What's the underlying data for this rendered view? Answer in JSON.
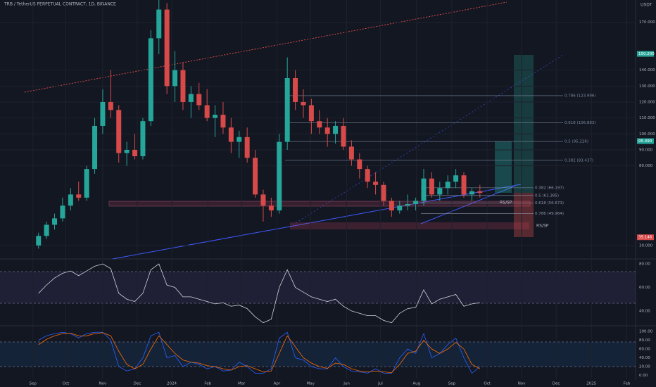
{
  "chart_data": [
    {
      "type": "candlestick",
      "title": "TRB / TetherUS PERPETUAL CONTRACT, 1D, BINANCE",
      "currency": "USDT",
      "x": [
        0,
        1,
        2,
        3,
        4,
        5,
        6,
        7,
        8,
        9,
        10,
        11,
        12,
        13,
        14,
        15,
        16,
        17,
        18,
        19,
        20,
        21,
        22,
        23,
        24,
        25,
        26,
        27,
        28,
        29,
        30,
        31,
        32,
        33,
        34,
        35,
        36,
        37,
        38,
        39,
        40,
        41,
        42,
        43,
        44,
        45,
        46,
        47,
        48,
        49,
        50,
        51,
        52,
        53,
        54,
        55
      ],
      "open": [
        30,
        36,
        43,
        47,
        55,
        62,
        60,
        78,
        105,
        120,
        115,
        88,
        90,
        86,
        108,
        160,
        178,
        130,
        140,
        120,
        125,
        118,
        110,
        112,
        104,
        95,
        98,
        85,
        62,
        55,
        52,
        95,
        135,
        120,
        118,
        108,
        104,
        100,
        105,
        92,
        84,
        78,
        70,
        68,
        58,
        52,
        55,
        56,
        58,
        72,
        62,
        66,
        70,
        74,
        62,
        64
      ],
      "high": [
        38,
        45,
        50,
        60,
        66,
        70,
        80,
        110,
        128,
        140,
        118,
        95,
        100,
        110,
        165,
        184,
        182,
        152,
        145,
        130,
        132,
        128,
        118,
        120,
        110,
        102,
        104,
        90,
        65,
        60,
        100,
        148,
        140,
        128,
        122,
        115,
        110,
        108,
        110,
        96,
        88,
        80,
        76,
        70,
        60,
        58,
        62,
        60,
        78,
        76,
        70,
        74,
        78,
        76,
        66,
        68
      ],
      "low": [
        28,
        34,
        40,
        45,
        52,
        58,
        58,
        75,
        100,
        110,
        82,
        80,
        84,
        84,
        105,
        150,
        125,
        120,
        115,
        110,
        115,
        108,
        98,
        100,
        88,
        85,
        82,
        60,
        45,
        48,
        50,
        90,
        115,
        110,
        100,
        100,
        92,
        94,
        90,
        80,
        72,
        66,
        62,
        55,
        48,
        50,
        52,
        52,
        55,
        60,
        58,
        62,
        66,
        60,
        58,
        60
      ],
      "close": [
        36,
        43,
        47,
        55,
        62,
        60,
        78,
        105,
        120,
        115,
        88,
        90,
        86,
        108,
        160,
        178,
        130,
        140,
        120,
        125,
        118,
        110,
        112,
        104,
        95,
        98,
        85,
        62,
        55,
        52,
        95,
        135,
        120,
        118,
        108,
        104,
        100,
        105,
        92,
        84,
        78,
        70,
        68,
        58,
        52,
        55,
        56,
        58,
        72,
        62,
        66,
        70,
        74,
        62,
        64,
        63
      ],
      "colors": {
        "up": "#26a69a",
        "down": "#d84a4a"
      },
      "xlim": [
        -4.8,
        74.4
      ],
      "xticks": [
        {
          "value": -0.7,
          "label": "Sep"
        },
        {
          "value": 3.4,
          "label": "Oct"
        },
        {
          "value": 8.0,
          "label": "Nov"
        },
        {
          "value": 12.3,
          "label": "Dec"
        },
        {
          "value": 16.6,
          "label": "2024"
        },
        {
          "value": 21.1,
          "label": "Feb"
        },
        {
          "value": 25.3,
          "label": "Mar"
        },
        {
          "value": 29.7,
          "label": "Apr"
        },
        {
          "value": 33.9,
          "label": "May"
        },
        {
          "value": 38.4,
          "label": "Jun"
        },
        {
          "value": 42.6,
          "label": "Jul"
        },
        {
          "value": 47.1,
          "label": "Aug"
        },
        {
          "value": 51.5,
          "label": "Sep"
        },
        {
          "value": 55.9,
          "label": "Oct"
        },
        {
          "value": 60.2,
          "label": "Nov"
        },
        {
          "value": 64.5,
          "label": "Dec"
        },
        {
          "value": 68.9,
          "label": "2025"
        },
        {
          "value": 73.3,
          "label": "Feb"
        }
      ],
      "ylim": [
        22,
        184
      ],
      "yticks": [
        {
          "value": 170,
          "label": "170.000"
        },
        {
          "value": 140,
          "label": "140.000"
        },
        {
          "value": 130,
          "label": "130.000"
        },
        {
          "value": 120,
          "label": "120.000"
        },
        {
          "value": 110,
          "label": "110.000"
        },
        {
          "value": 100,
          "label": "100.000"
        },
        {
          "value": 90,
          "label": "90.000"
        },
        {
          "value": 80,
          "label": "80.000"
        },
        {
          "value": 30,
          "label": "30.000"
        }
      ],
      "price_tags": [
        {
          "value": 150.2,
          "label": "150.200",
          "color": "#26a69a"
        },
        {
          "value": 95.49,
          "label": "95.490",
          "color": "#26a69a"
        },
        {
          "value": 35.146,
          "label": "35.146",
          "color": "#d84a4a"
        }
      ],
      "fib_upper": [
        {
          "value": 123.996,
          "label": "0.786 (123.996)"
        },
        {
          "value": 106.883,
          "label": "0.618 (106.883)"
        },
        {
          "value": 95.226,
          "label": "0.5 (95.226)"
        },
        {
          "value": 83.437,
          "label": "0.382 (83.437)"
        }
      ],
      "fib_lower": [
        {
          "value": 66.197,
          "label": "0.382 (66.197)"
        },
        {
          "value": 61.385,
          "label": "0.5 (61.385)"
        },
        {
          "value": 56.673,
          "label": "0.618 (56.673)"
        },
        {
          "value": 49.964,
          "label": "0.786 (49.964)"
        }
      ],
      "zone_labels": [
        "RS/SP",
        "RS/SP"
      ]
    },
    {
      "type": "line",
      "color": "#d1d4dc",
      "values": [
        55,
        62,
        68,
        72,
        74,
        70,
        74,
        78,
        80,
        76,
        55,
        50,
        48,
        55,
        75,
        80,
        62,
        60,
        52,
        52,
        50,
        48,
        46,
        47,
        44,
        45,
        42,
        35,
        30,
        33,
        60,
        75,
        60,
        56,
        52,
        50,
        48,
        50,
        44,
        40,
        38,
        36,
        36,
        32,
        30,
        38,
        42,
        43,
        58,
        46,
        50,
        52,
        54,
        44,
        46,
        47
      ],
      "ylim": [
        30.4,
        81.8
      ],
      "yticks": [
        {
          "value": 80,
          "label": "80.00"
        },
        {
          "value": 60,
          "label": "60.00"
        },
        {
          "value": 40,
          "label": "40.00"
        }
      ]
    },
    {
      "type": "line",
      "series": [
        {
          "color": "#2962ff",
          "values": [
            80,
            90,
            95,
            98,
            95,
            85,
            95,
            98,
            98,
            80,
            20,
            10,
            15,
            40,
            90,
            98,
            40,
            45,
            20,
            30,
            25,
            15,
            20,
            10,
            12,
            30,
            20,
            5,
            5,
            15,
            85,
            98,
            40,
            35,
            20,
            15,
            15,
            40,
            20,
            10,
            8,
            5,
            15,
            5,
            5,
            40,
            60,
            50,
            95,
            40,
            50,
            70,
            85,
            40,
            5,
            20
          ]
        },
        {
          "color": "#ff6d00",
          "values": [
            70,
            82,
            90,
            95,
            96,
            90,
            90,
            95,
            97,
            90,
            55,
            25,
            15,
            25,
            60,
            90,
            70,
            50,
            35,
            30,
            28,
            22,
            20,
            15,
            12,
            20,
            22,
            15,
            8,
            10,
            50,
            90,
            65,
            40,
            28,
            20,
            16,
            28,
            25,
            15,
            10,
            8,
            10,
            8,
            6,
            25,
            50,
            55,
            80,
            60,
            50,
            60,
            75,
            60,
            25,
            15
          ]
        }
      ],
      "ylim": [
        -7.2,
        106.4
      ],
      "yticks": [
        {
          "value": 100,
          "label": "100.00"
        },
        {
          "value": 80,
          "label": "80.00"
        },
        {
          "value": 60,
          "label": "60.00"
        },
        {
          "value": 40,
          "label": "40.00"
        },
        {
          "value": 20,
          "label": "20.00"
        },
        {
          "value": 0,
          "label": "0.00"
        }
      ]
    }
  ]
}
